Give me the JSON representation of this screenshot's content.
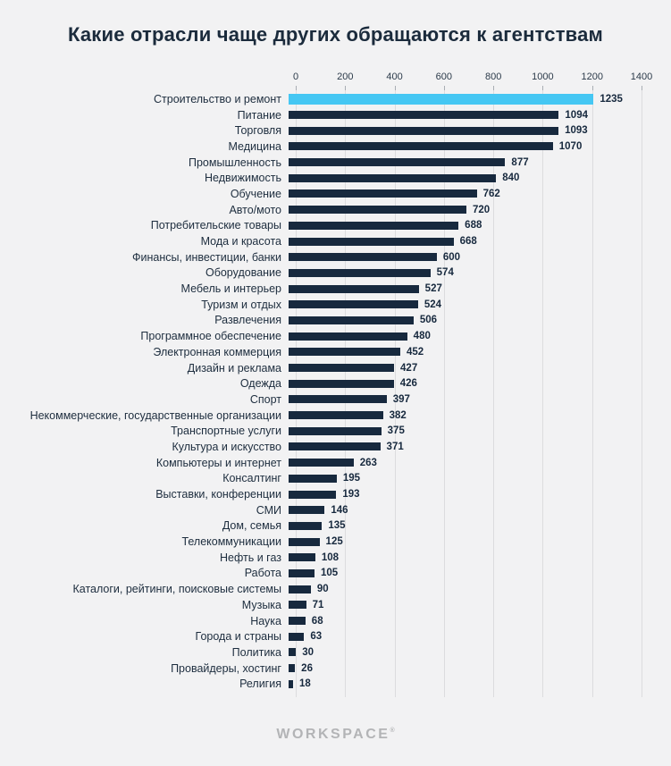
{
  "title": "Какие отрасли чаще других обращаются к агентствам",
  "footer": {
    "brand": "WORKSPACE",
    "trademark": "®"
  },
  "chart_data": {
    "type": "bar",
    "orientation": "horizontal",
    "title": "Какие отрасли чаще других обращаются к агентствам",
    "xlabel": "",
    "ylabel": "",
    "xlim": [
      0,
      1400
    ],
    "ticks": [
      0,
      200,
      400,
      600,
      800,
      1000,
      1200,
      1400
    ],
    "grid": true,
    "bar_color": "#17293e",
    "highlight_color": "#45c7f3",
    "highlight_index": 0,
    "categories": [
      "Строительство и ремонт",
      "Питание",
      "Торговля",
      "Медицина",
      "Промышленность",
      "Недвижимость",
      "Обучение",
      "Авто/мото",
      "Потребительские товары",
      "Мода и красота",
      "Финансы, инвестиции, банки",
      "Оборудование",
      "Мебель и интерьер",
      "Туризм и отдых",
      "Развлечения",
      "Программное обеспечение",
      "Электронная коммерция",
      "Дизайн и реклама",
      "Одежда",
      "Спорт",
      "Некоммерческие, государственные организации",
      "Транспортные услуги",
      "Культура и искусство",
      "Компьютеры и интернет",
      "Консалтинг",
      "Выставки, конференции",
      "СМИ",
      "Дом, семья",
      "Телекоммуникации",
      "Нефть и газ",
      "Работа",
      "Каталоги, рейтинги, поисковые системы",
      "Музыка",
      "Наука",
      "Города и страны",
      "Политика",
      "Провайдеры, хостинг",
      "Религия"
    ],
    "values": [
      1235,
      1094,
      1093,
      1070,
      877,
      840,
      762,
      720,
      688,
      668,
      600,
      574,
      527,
      524,
      506,
      480,
      452,
      427,
      426,
      397,
      382,
      375,
      371,
      263,
      195,
      193,
      146,
      135,
      125,
      108,
      105,
      90,
      71,
      68,
      63,
      30,
      26,
      18
    ]
  }
}
